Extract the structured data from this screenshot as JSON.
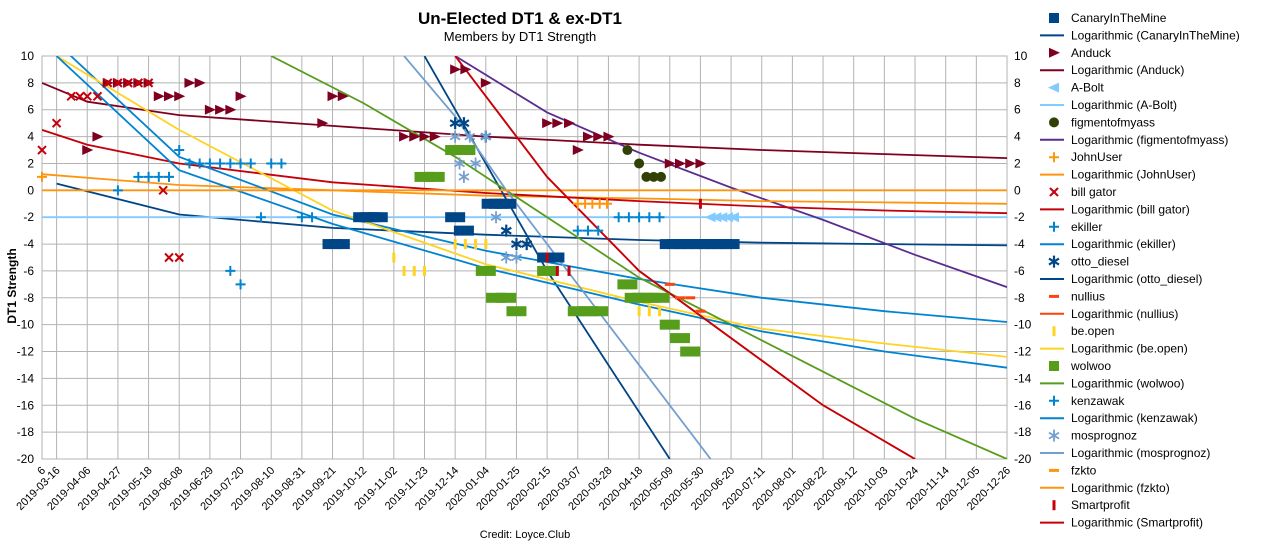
{
  "chart_data": {
    "type": "scatter",
    "title": "Un-Elected DT1 & ex-DT1",
    "subtitle": "Members by DT1 Strength",
    "ylabel": "DT1 Strength",
    "xlabel": "",
    "credit": "Credit: Loyce.Club",
    "ylim": [
      -20,
      10
    ],
    "yticks": [
      "10",
      "8",
      "6",
      "4",
      "2",
      "0",
      "-2",
      "-4",
      "-6",
      "-8",
      "-10",
      "-12",
      "-14",
      "-16",
      "-18",
      "-20"
    ],
    "xticks": [
      "6",
      "2019-03-16",
      "2019-04-06",
      "2019-04-27",
      "2019-05-18",
      "2019-06-08",
      "2019-06-29",
      "2019-07-20",
      "2019-08-10",
      "2019-08-31",
      "2019-09-21",
      "2019-10-12",
      "2019-11-02",
      "2019-11-23",
      "2019-12-14",
      "2020-01-04",
      "2020-01-25",
      "2020-02-15",
      "2020-03-07",
      "2020-03-28",
      "2020-04-18",
      "2020-05-09",
      "2020-05-30",
      "2020-06-20",
      "2020-07-11",
      "2020-08-01",
      "2020-08-22",
      "2020-09-12",
      "2020-10-03",
      "2020-10-24",
      "2020-11-14",
      "2020-12-05",
      "2020-12-26"
    ],
    "grid": true,
    "legend_position": "right",
    "series": [
      {
        "name": "CanaryInTheMine",
        "marker": "square",
        "color": "#004586",
        "x": [
          "2019-09-21",
          "2019-09-26",
          "2019-10-12",
          "2019-10-17",
          "2019-10-22",
          "2019-12-14",
          "2019-12-20",
          "2020-01-08",
          "2020-01-13",
          "2020-01-18",
          "2020-02-15",
          "2020-02-20",
          "2020-05-09",
          "2020-05-14",
          "2020-05-19",
          "2020-05-24",
          "2020-05-30",
          "2020-06-04",
          "2020-06-09",
          "2020-06-14",
          "2020-06-19"
        ],
        "y": [
          -4,
          -4,
          -2,
          -2,
          -2,
          -2,
          -3,
          -1,
          -1,
          -1,
          -5,
          -5,
          -4,
          -4,
          -4,
          -4,
          -4,
          -4,
          -4,
          -4,
          -4
        ]
      },
      {
        "name": "Logarithmic (CanaryInTheMine)",
        "type": "trend",
        "color": "#004586",
        "x": [
          "2019-03-16",
          "2019-06-08",
          "2019-09-21",
          "2020-01-04",
          "2020-04-18",
          "2020-07-11",
          "2020-10-03",
          "2020-12-26"
        ],
        "y": [
          0.5,
          -1.8,
          -2.8,
          -3.3,
          -3.7,
          -3.9,
          -4.0,
          -4.1
        ]
      },
      {
        "name": "Anduck",
        "marker": "triangle-right",
        "color": "#7e0021",
        "x": [
          "2019-04-06",
          "2019-04-13",
          "2019-04-20",
          "2019-04-27",
          "2019-05-04",
          "2019-05-11",
          "2019-05-18",
          "2019-05-25",
          "2019-06-01",
          "2019-06-08",
          "2019-06-15",
          "2019-06-22",
          "2019-06-29",
          "2019-07-06",
          "2019-07-13",
          "2019-07-20",
          "2019-09-14",
          "2019-09-21",
          "2019-09-28",
          "2019-11-09",
          "2019-11-16",
          "2019-11-23",
          "2019-11-30",
          "2019-12-14",
          "2019-12-21",
          "2020-01-04",
          "2020-02-15",
          "2020-02-22",
          "2020-03-01",
          "2020-03-07",
          "2020-03-14",
          "2020-03-21",
          "2020-03-28",
          "2020-05-09",
          "2020-05-16",
          "2020-05-23",
          "2020-05-30"
        ],
        "y": [
          3,
          4,
          8,
          8,
          8,
          8,
          8,
          7,
          7,
          7,
          8,
          8,
          6,
          6,
          6,
          7,
          5,
          7,
          7,
          4,
          4,
          4,
          4,
          9,
          9,
          8,
          5,
          5,
          5,
          3,
          4,
          4,
          4,
          2,
          2,
          2,
          2
        ]
      },
      {
        "name": "Logarithmic (Anduck)",
        "type": "trend",
        "color": "#7e0021",
        "x": [
          "2019-03-06",
          "2019-04-06",
          "2019-06-08",
          "2019-09-21",
          "2020-01-04",
          "2020-04-18",
          "2020-07-11",
          "2020-10-03",
          "2020-12-26"
        ],
        "y": [
          8.0,
          6.6,
          5.6,
          4.8,
          4.0,
          3.4,
          3.0,
          2.7,
          2.4
        ]
      },
      {
        "name": "A-Bolt",
        "marker": "triangle-left",
        "color": "#83caff",
        "x": [
          "2020-06-06",
          "2020-06-10",
          "2020-06-14",
          "2020-06-18",
          "2020-06-22"
        ],
        "y": [
          -2,
          -2,
          -2,
          -2,
          -2
        ]
      },
      {
        "name": "Logarithmic (A-Bolt)",
        "type": "trend",
        "color": "#83caff",
        "x": [
          "2019-03-06",
          "2020-12-26"
        ],
        "y": [
          -2,
          -2
        ]
      },
      {
        "name": "figmentofmyass",
        "marker": "circle",
        "color": "#314004",
        "x": [
          "2020-04-10",
          "2020-04-18",
          "2020-04-23",
          "2020-04-28",
          "2020-05-03"
        ],
        "y": [
          3,
          2,
          1,
          1,
          1
        ]
      },
      {
        "name": "Logarithmic (figmentofmyass)",
        "type": "trend",
        "color": "#5c2d91",
        "x": [
          "2019-12-14",
          "2020-02-15",
          "2020-04-18",
          "2020-06-20",
          "2020-08-22",
          "2020-10-24",
          "2020-12-26"
        ],
        "y": [
          10.0,
          5.8,
          2.8,
          0.2,
          -2.2,
          -4.8,
          -7.2
        ]
      },
      {
        "name": "JohnUser",
        "marker": "plus",
        "color": "#ff950e",
        "x": [
          "2019-03-06",
          "2019-06-01",
          "2020-03-07",
          "2020-03-12",
          "2020-03-17",
          "2020-03-22",
          "2020-03-27"
        ],
        "y": [
          1,
          1,
          -1,
          -1,
          -1,
          -1,
          -1
        ]
      },
      {
        "name": "Logarithmic (JohnUser)",
        "type": "trend",
        "color": "#ff950e",
        "x": [
          "2019-03-06",
          "2019-06-08",
          "2019-09-21",
          "2020-01-04",
          "2020-04-18",
          "2020-07-11",
          "2020-10-03",
          "2020-12-26"
        ],
        "y": [
          1.2,
          0.4,
          0.0,
          -0.4,
          -0.6,
          -0.8,
          -0.9,
          -1.0
        ]
      },
      {
        "name": "bill gator",
        "marker": "x",
        "color": "#c5000b",
        "x": [
          "2019-03-06",
          "2019-03-16",
          "2019-03-26",
          "2019-04-01",
          "2019-04-06",
          "2019-04-13",
          "2019-04-20",
          "2019-04-27",
          "2019-05-04",
          "2019-05-11",
          "2019-05-18",
          "2019-05-28",
          "2019-06-01",
          "2019-06-08"
        ],
        "y": [
          3,
          5,
          7,
          7,
          7,
          7,
          8,
          8,
          8,
          8,
          8,
          0,
          -5,
          -5
        ]
      },
      {
        "name": "Logarithmic (bill gator)",
        "type": "trend",
        "color": "#c5000b",
        "x": [
          "2019-03-06",
          "2019-04-06",
          "2019-06-08",
          "2019-09-21",
          "2020-01-04",
          "2020-04-18",
          "2020-07-11",
          "2020-10-03",
          "2020-12-26"
        ],
        "y": [
          4.5,
          3.4,
          2.0,
          0.6,
          -0.2,
          -0.8,
          -1.2,
          -1.5,
          -1.7
        ]
      },
      {
        "name": "ekiller",
        "marker": "plus",
        "color": "#0084d1",
        "x": [
          "2019-04-27",
          "2019-05-11",
          "2019-05-18",
          "2019-05-25",
          "2019-06-01",
          "2019-06-08",
          "2019-06-15",
          "2019-06-22",
          "2019-06-29",
          "2019-07-06",
          "2019-07-13",
          "2019-07-20",
          "2019-07-27",
          "2019-08-03",
          "2019-08-10",
          "2019-08-17",
          "2019-08-31",
          "2019-09-07"
        ],
        "y": [
          0,
          1,
          1,
          1,
          1,
          3,
          2,
          2,
          2,
          2,
          2,
          2,
          2,
          -2,
          2,
          2,
          -2,
          -2
        ]
      },
      {
        "name": "Logarithmic (ekiller)",
        "type": "trend",
        "color": "#0084d1",
        "x": [
          "2019-03-06",
          "2019-06-08",
          "2019-09-21",
          "2020-01-04",
          "2020-04-18",
          "2020-07-11",
          "2020-10-03",
          "2020-12-26"
        ],
        "y": [
          12.0,
          2.5,
          -1.8,
          -4.5,
          -6.6,
          -8.0,
          -9.0,
          -9.8
        ]
      },
      {
        "name": "otto_diesel",
        "marker": "star",
        "color": "#004586",
        "x": [
          "2019-12-14",
          "2019-12-20",
          "2020-01-04",
          "2020-01-18",
          "2020-01-25",
          "2020-02-01"
        ],
        "y": [
          5,
          5,
          4,
          -3,
          -4,
          -4
        ]
      },
      {
        "name": "Logarithmic (otto_diesel)",
        "type": "trend",
        "color": "#004586",
        "x": [
          "2019-11-23",
          "2019-12-14",
          "2020-01-04",
          "2020-01-25",
          "2020-02-15",
          "2020-03-07",
          "2020-03-28",
          "2020-04-18",
          "2020-05-09"
        ],
        "y": [
          10,
          6,
          2,
          -2,
          -6,
          -9.5,
          -13,
          -16.5,
          -20
        ]
      },
      {
        "name": "nullius",
        "marker": "dash",
        "color": "#ff420e",
        "x": [
          "2020-05-09",
          "2020-05-16",
          "2020-05-23",
          "2020-05-30"
        ],
        "y": [
          -7,
          -8,
          -8,
          -9
        ]
      },
      {
        "name": "Logarithmic (nullius)",
        "type": "trend",
        "color": "#ff420e",
        "x": [
          "2019-12-14",
          "2020-02-15",
          "2020-04-18",
          "2020-06-20",
          "2020-08-22",
          "2020-10-24"
        ],
        "y": [
          10,
          1,
          -6,
          -11,
          -16,
          -20
        ]
      },
      {
        "name": "be.open",
        "marker": "vline",
        "color": "#ffd320",
        "x": [
          "2019-11-02",
          "2019-11-09",
          "2019-11-16",
          "2019-11-23",
          "2019-12-14",
          "2019-12-21",
          "2019-12-28",
          "2020-01-04",
          "2020-04-18",
          "2020-04-25",
          "2020-05-02"
        ],
        "y": [
          -5,
          -6,
          -6,
          -6,
          -4,
          -4,
          -4,
          -4,
          -9,
          -9,
          -9
        ]
      },
      {
        "name": "Logarithmic (be.open)",
        "type": "trend",
        "color": "#ffd320",
        "x": [
          "2019-03-16",
          "2019-06-08",
          "2019-09-21",
          "2020-01-04",
          "2020-04-18",
          "2020-07-11",
          "2020-10-03",
          "2020-12-26"
        ],
        "y": [
          10,
          4.5,
          -1.5,
          -5.5,
          -8.3,
          -10.3,
          -11.4,
          -12.4
        ]
      },
      {
        "name": "wolwoo",
        "marker": "square",
        "color": "#579d1c",
        "x": [
          "2019-11-23",
          "2019-11-30",
          "2019-12-14",
          "2019-12-21",
          "2020-01-04",
          "2020-01-11",
          "2020-01-18",
          "2020-01-25",
          "2020-02-15",
          "2020-03-07",
          "2020-03-14",
          "2020-03-21",
          "2020-04-10",
          "2020-04-15",
          "2020-04-20",
          "2020-04-25",
          "2020-05-02",
          "2020-05-09",
          "2020-05-16",
          "2020-05-23"
        ],
        "y": [
          1,
          1,
          3,
          3,
          -6,
          -8,
          -8,
          -9,
          -6,
          -9,
          -9,
          -9,
          -7,
          -8,
          -8,
          -8,
          -8,
          -10,
          -11,
          -12
        ]
      },
      {
        "name": "Logarithmic (wolwoo)",
        "type": "trend",
        "color": "#579d1c",
        "x": [
          "2019-08-10",
          "2019-10-12",
          "2019-12-14",
          "2020-02-15",
          "2020-04-18",
          "2020-06-20",
          "2020-08-22",
          "2020-10-24",
          "2020-12-26"
        ],
        "y": [
          10,
          6.5,
          2.5,
          -2,
          -6.5,
          -10,
          -13.5,
          -17,
          -20
        ]
      },
      {
        "name": "kenzawak",
        "marker": "plus",
        "color": "#0084d1",
        "x": [
          "2019-07-13",
          "2019-07-20",
          "2020-03-07",
          "2020-03-14",
          "2020-03-21",
          "2020-04-04",
          "2020-04-11",
          "2020-04-18",
          "2020-04-25",
          "2020-05-02"
        ],
        "y": [
          -6,
          -7,
          -3,
          -3,
          -3,
          -2,
          -2,
          -2,
          -2,
          -2
        ]
      },
      {
        "name": "Logarithmic (kenzawak)",
        "type": "trend",
        "color": "#0084d1",
        "x": [
          "2019-03-16",
          "2019-06-08",
          "2019-09-21",
          "2020-01-04",
          "2020-04-18",
          "2020-07-11",
          "2020-10-03",
          "2020-12-26"
        ],
        "y": [
          10,
          1.5,
          -2.5,
          -5.8,
          -8.5,
          -10.5,
          -12,
          -13.2
        ]
      },
      {
        "name": "mosprognoz",
        "marker": "asterisk",
        "color": "#729fcf",
        "x": [
          "2019-12-14",
          "2019-12-17",
          "2019-12-20",
          "2019-12-24",
          "2019-12-28",
          "2020-01-04",
          "2020-01-11",
          "2020-01-18",
          "2020-01-25"
        ],
        "y": [
          4,
          2,
          1,
          4,
          2,
          4,
          -2,
          -5,
          -5
        ]
      },
      {
        "name": "Logarithmic (mosprognoz)",
        "type": "trend",
        "color": "#729fcf",
        "x": [
          "2019-11-09",
          "2019-12-14",
          "2020-01-18",
          "2020-02-22",
          "2020-03-28",
          "2020-05-02",
          "2020-06-06"
        ],
        "y": [
          10,
          5.5,
          0,
          -5,
          -10,
          -15,
          -20
        ]
      },
      {
        "name": "fzkto",
        "marker": "dash",
        "color": "#ff950e",
        "x": [],
        "y": []
      },
      {
        "name": "Logarithmic (fzkto)",
        "type": "trend",
        "color": "#ff950e",
        "x": [
          "2019-03-06",
          "2020-12-26"
        ],
        "y": [
          0,
          0
        ]
      },
      {
        "name": "Smartprofit",
        "marker": "vline",
        "color": "#c5000b",
        "x": [
          "2020-02-15",
          "2020-02-22",
          "2020-03-01",
          "2020-05-30"
        ],
        "y": [
          -5,
          -6,
          -6,
          -1
        ]
      },
      {
        "name": "Logarithmic (Smartprofit)",
        "type": "trend",
        "color": "#c5000b",
        "x": [
          "2019-12-14",
          "2020-02-15",
          "2020-04-18",
          "2020-06-20",
          "2020-08-22",
          "2020-10-24"
        ],
        "y": [
          10,
          1,
          -6,
          -11,
          -16,
          -20
        ]
      }
    ]
  }
}
